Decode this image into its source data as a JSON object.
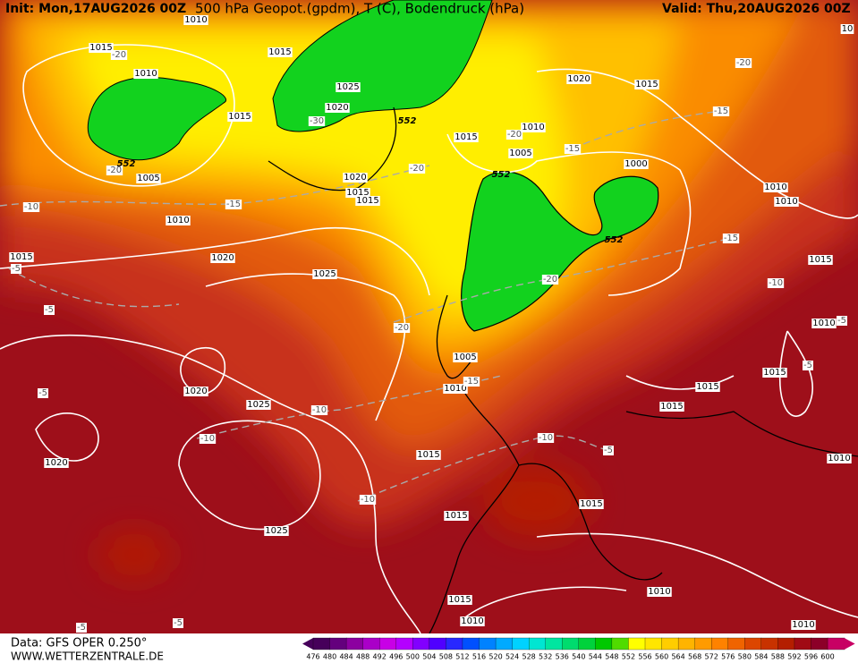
{
  "header": {
    "init": "Init: Mon,17AUG2026 00Z",
    "title": "500 hPa Geopot.(gpdm), T (C), Bodendruck (hPa)",
    "valid": "Valid: Thu,20AUG2026 00Z"
  },
  "footer": {
    "data": "Data: GFS OPER 0.250°",
    "site": "WWW.WETTERZENTRALE.DE"
  },
  "colorbar": {
    "ticks": [
      476,
      480,
      484,
      488,
      492,
      496,
      500,
      504,
      508,
      512,
      516,
      520,
      524,
      528,
      532,
      536,
      540,
      544,
      548,
      552,
      556,
      560,
      564,
      568,
      572,
      576,
      580,
      584,
      588,
      592,
      596,
      600
    ],
    "colors": [
      "#46005a",
      "#64007d",
      "#8c00a0",
      "#aa00c8",
      "#c800e6",
      "#b400ff",
      "#8200ff",
      "#5000ff",
      "#2828ff",
      "#0050ff",
      "#0082ff",
      "#00aaff",
      "#00d2ff",
      "#00e6d2",
      "#00e6a0",
      "#00dc6e",
      "#00d23c",
      "#00c800",
      "#50dc00",
      "#ffff00",
      "#ffe600",
      "#ffcd00",
      "#ffb400",
      "#ff9b00",
      "#ff8200",
      "#f06400",
      "#dc4600",
      "#c83200",
      "#b41e00",
      "#a00a14",
      "#8c0028",
      "#c80064"
    ]
  },
  "labels": {
    "isobars": [
      "1010",
      "1015",
      "1015",
      "1010",
      "1025",
      "1020",
      "1015",
      "1020",
      "1015",
      "1010",
      "1015",
      "1005",
      "1000",
      "1005",
      "1020",
      "1015",
      "1015",
      "1010",
      "1010",
      "1010",
      "1015",
      "1020",
      "1025",
      "1015",
      "1010",
      "1005",
      "1010",
      "1015",
      "1015",
      "1015",
      "1020",
      "1025",
      "1020",
      "1015",
      "1010",
      "1015",
      "1015",
      "1025",
      "1015",
      "1010",
      "1010",
      "1010",
      "10"
    ],
    "temperatures": [
      "-20",
      "-20",
      "-10",
      "-15",
      "-5",
      "-5",
      "-30",
      "-20",
      "-20",
      "-15",
      "-15",
      "-20",
      "-15",
      "-10",
      "-5",
      "-5",
      "-20",
      "-20",
      "-15",
      "-10",
      "-10",
      "-5",
      "-10",
      "-5",
      "-10",
      "-5",
      "-5"
    ],
    "heights": [
      "552",
      "552",
      "552",
      "552"
    ]
  }
}
